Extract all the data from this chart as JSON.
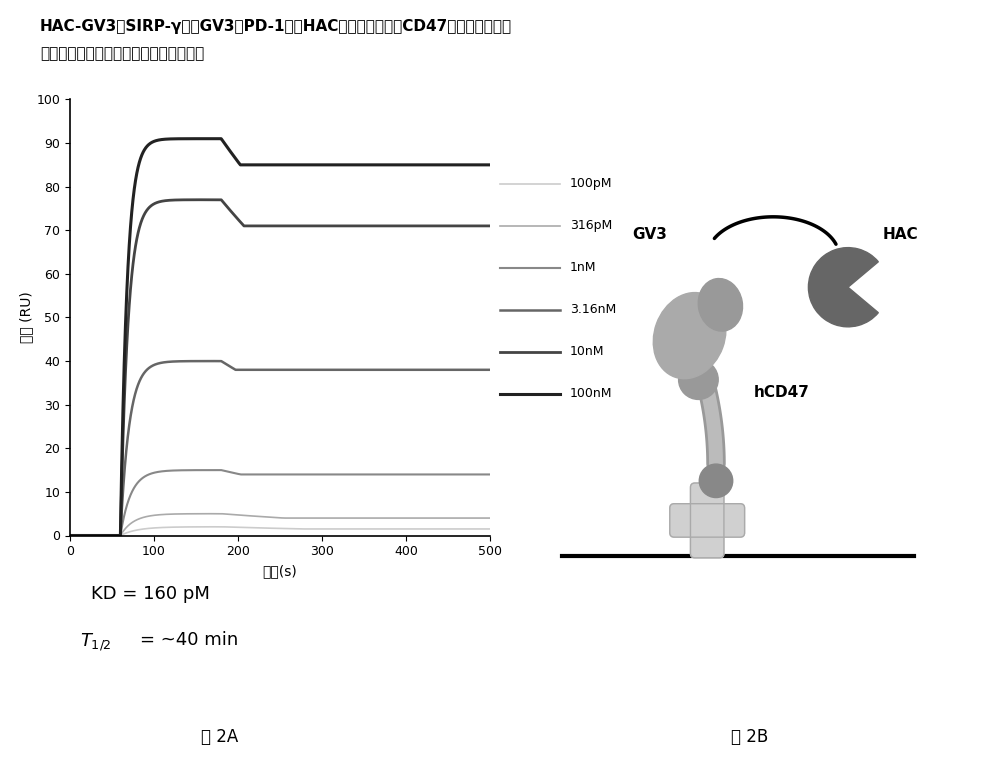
{
  "ylabel": "结合 (RU)",
  "xlabel": "时间(s)",
  "xlim": [
    0,
    500
  ],
  "ylim": [
    0,
    100
  ],
  "xticks": [
    0,
    100,
    200,
    300,
    400,
    500
  ],
  "yticks": [
    0,
    10,
    20,
    30,
    40,
    50,
    60,
    70,
    80,
    90,
    100
  ],
  "fig2a_label": "图 2A",
  "fig2b_label": "图 2B",
  "legend_labels": [
    "100pM",
    "316pM",
    "1nM",
    "3.16nM",
    "10nM",
    "100nM"
  ],
  "line_colors": [
    "#cccccc",
    "#aaaaaa",
    "#888888",
    "#666666",
    "#444444",
    "#222222"
  ],
  "line_widths": [
    1.2,
    1.2,
    1.5,
    1.8,
    2.0,
    2.2
  ],
  "association_start": 60,
  "dissociation_start": 180,
  "plateau_values": [
    2.0,
    5.0,
    15.0,
    40.0,
    77.0,
    91.0
  ],
  "end_values": [
    1.5,
    4.0,
    14.0,
    38.0,
    71.0,
    85.0
  ],
  "background_color": "#ffffff"
}
